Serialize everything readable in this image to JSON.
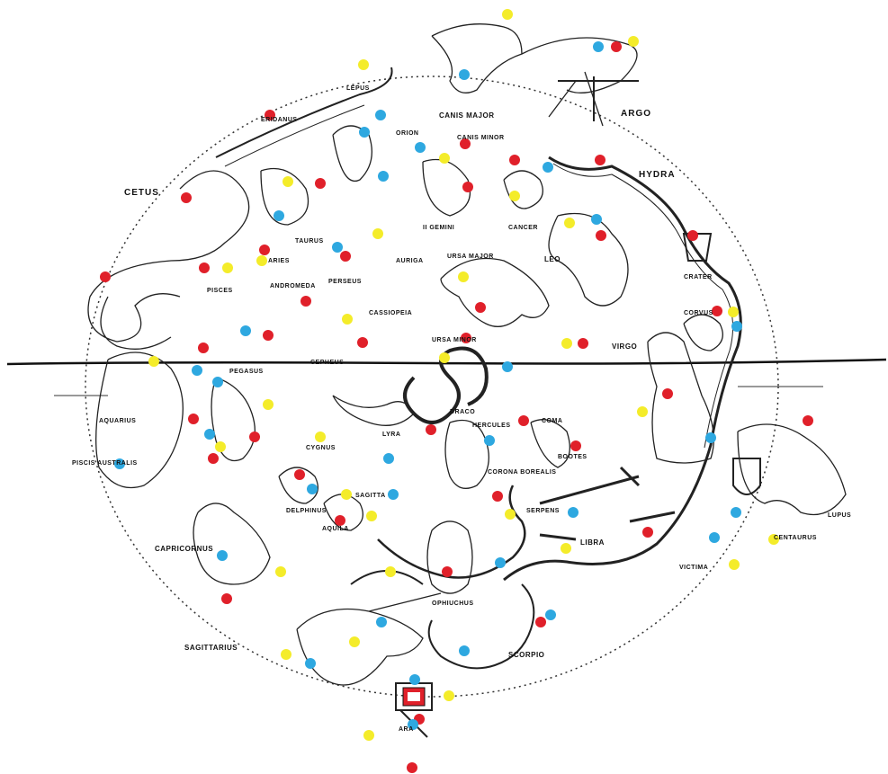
{
  "labels": {
    "cetus": "CETUS",
    "eridanus": "ERIDANUS",
    "lepus": "LEPUS",
    "orion": "ORION",
    "canis_major": "CANIS MAJOR",
    "canis_minor": "CANIS MINOR",
    "argo": "ARGO",
    "hydra": "HYDRA",
    "gemini": "II GEMINI",
    "cancer": "CANCER",
    "leo": "LEO",
    "crater": "CRATER",
    "corvus": "CORVUS",
    "taurus": "TAURUS",
    "aries": "ARIES",
    "pisces": "PISCES",
    "auriga": "AURIGA",
    "ursa_major": "URSA MAJOR",
    "andromeda": "ANDROMEDA",
    "perseus": "PERSEUS",
    "cassiopeia": "CASSIOPEIA",
    "ursa_minor": "URSA MINOR",
    "pegasus": "PEGASUS",
    "cepheus": "CEPHEUS",
    "virgo": "VIRGO",
    "aquarius": "AQUARIUS",
    "piscis_australis": "PISCIS AUSTRALIS",
    "draco": "DRACO",
    "cygnus": "CYGNUS",
    "lyra": "LYRA",
    "hercules": "HERCULES",
    "coma": "COMA",
    "bootes": "BOOTES",
    "corona_borealis": "CORONA BOREALIS",
    "centaurus": "CENTAURUS",
    "delphinus": "DELPHINUS",
    "sagitta": "SAGITTA",
    "aquila": "AQUILA",
    "serpens": "SERPENS",
    "libra": "LIBRA",
    "capricornus": "CAPRICORNUS",
    "ophiuchus": "OPHIUCHUS",
    "lupus": "LUPUS",
    "victima": "VICTIMA",
    "sagittarius": "SAGITTARIUS",
    "scorpio": "SCORPIO",
    "ara": "ARA"
  },
  "dot_colors": {
    "red": "#e0202a",
    "blue": "#2ea8e0",
    "yellow": "#f4ec2a"
  },
  "line_color": "#111111"
}
